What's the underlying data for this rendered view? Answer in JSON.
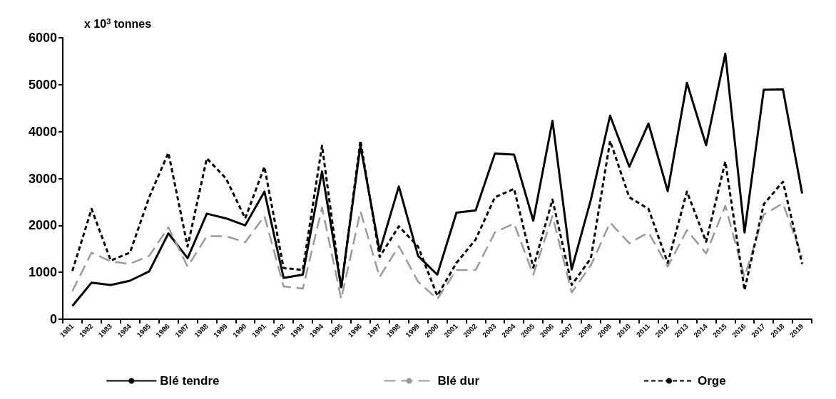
{
  "chart_data": {
    "type": "line",
    "ylabel": "x 10$^{3}$ tonnes",
    "categories": [
      "1981",
      "1982",
      "1983",
      "1984",
      "1985",
      "1986",
      "1987",
      "1988",
      "1989",
      "1990",
      "1991",
      "1992",
      "1993",
      "1994",
      "1995",
      "1996",
      "1997",
      "1998",
      "1999",
      "2000",
      "2001",
      "2002",
      "2003",
      "2004",
      "2005",
      "2006",
      "2007",
      "2008",
      "2009",
      "2010",
      "2011",
      "2012",
      "2013",
      "2014",
      "2015",
      "2016",
      "2017",
      "2018",
      "2019"
    ],
    "series": [
      {
        "name": "Blé tendre",
        "color": "#000000",
        "line_style": "solid",
        "values": [
          280,
          780,
          730,
          820,
          1020,
          1830,
          1300,
          2250,
          2150,
          2000,
          2720,
          880,
          950,
          3150,
          680,
          3700,
          1450,
          2830,
          1350,
          950,
          2270,
          2320,
          3530,
          3510,
          2100,
          4230,
          1060,
          2550,
          4340,
          3250,
          4170,
          2730,
          5040,
          3710,
          5660,
          1850,
          4890,
          4900,
          2680
        ]
      },
      {
        "name": "Blé dur",
        "color": "#9a9a9a",
        "line_style": "dashed",
        "values": [
          600,
          1420,
          1230,
          1180,
          1350,
          1960,
          1120,
          1770,
          1770,
          1640,
          2200,
          700,
          650,
          2380,
          430,
          2300,
          900,
          1560,
          800,
          430,
          1050,
          1050,
          1850,
          2040,
          950,
          2200,
          570,
          1150,
          2060,
          1620,
          1850,
          1120,
          1900,
          1400,
          2420,
          900,
          2230,
          2470,
          1330
        ]
      },
      {
        "name": "Orge",
        "color": "#000000",
        "line_style": "dotted",
        "values": [
          1030,
          2350,
          1250,
          1420,
          2600,
          3550,
          1550,
          3430,
          3000,
          2150,
          3250,
          1090,
          1050,
          3700,
          650,
          3810,
          1330,
          1980,
          1550,
          500,
          1200,
          1700,
          2600,
          2780,
          1100,
          2550,
          730,
          1300,
          3800,
          2600,
          2350,
          1200,
          2720,
          1650,
          3360,
          620,
          2450,
          2930,
          1180
        ]
      }
    ],
    "ylim": [
      0,
      6000
    ],
    "yticks": [
      0,
      1000,
      2000,
      3000,
      4000,
      5000,
      6000
    ],
    "grid": false,
    "legend": "bottom",
    "marker": "none"
  }
}
